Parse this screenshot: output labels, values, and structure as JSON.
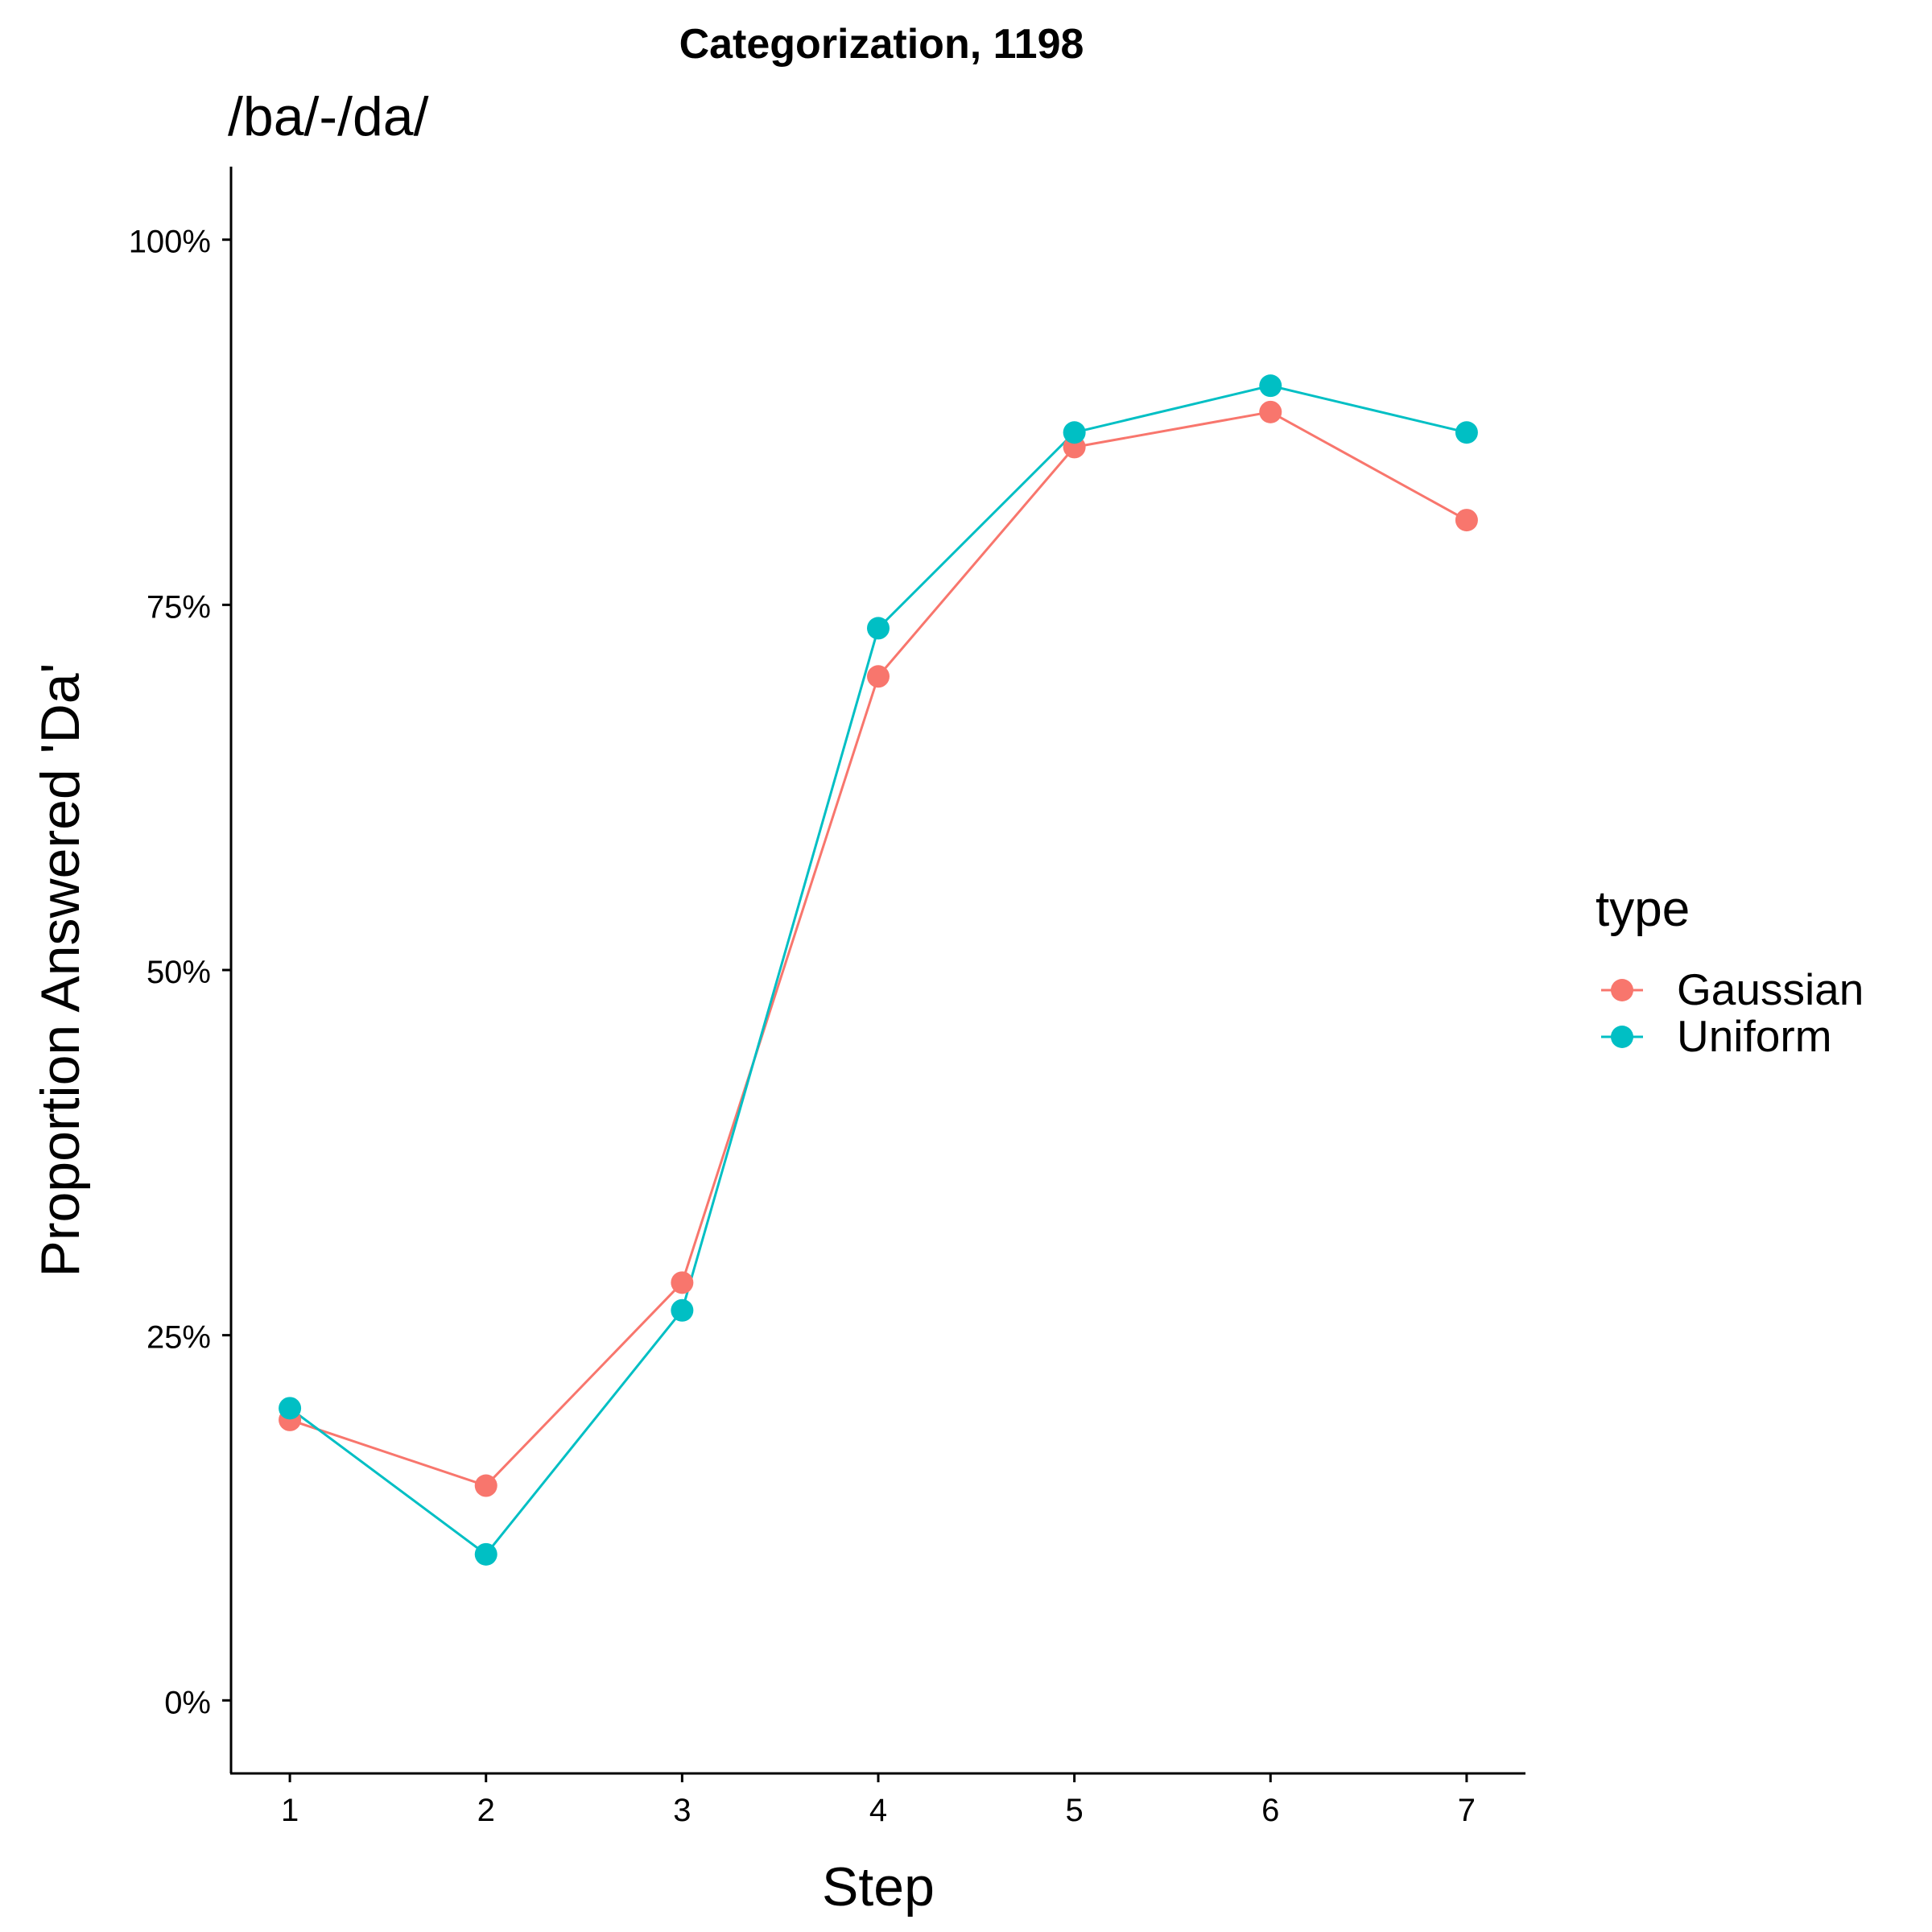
{
  "chart_data": {
    "type": "line",
    "title": "Categorization, 1198",
    "subtitle": "/ba/-/da/",
    "xlabel": "Step",
    "ylabel": "Proportion Answered 'Da'",
    "x": [
      1,
      2,
      3,
      4,
      5,
      6,
      7
    ],
    "xlim": [
      0.7,
      7.3
    ],
    "ylim": [
      -0.05,
      1.05
    ],
    "yticks": [
      0,
      0.25,
      0.5,
      0.75,
      1.0
    ],
    "ytick_labels": [
      "0%",
      "25%",
      "50%",
      "75%",
      "100%"
    ],
    "xtick_labels": [
      "1",
      "2",
      "3",
      "4",
      "5",
      "6",
      "7"
    ],
    "grid": false,
    "legend": {
      "title": "type",
      "placement": "right"
    },
    "series": [
      {
        "name": "Gaussian",
        "color": "#F8766D",
        "values": [
          0.192,
          0.147,
          0.286,
          0.701,
          0.858,
          0.882,
          0.808
        ]
      },
      {
        "name": "Uniform",
        "color": "#00BFC4",
        "values": [
          0.2,
          0.1,
          0.267,
          0.734,
          0.868,
          0.9,
          0.868
        ]
      }
    ]
  }
}
